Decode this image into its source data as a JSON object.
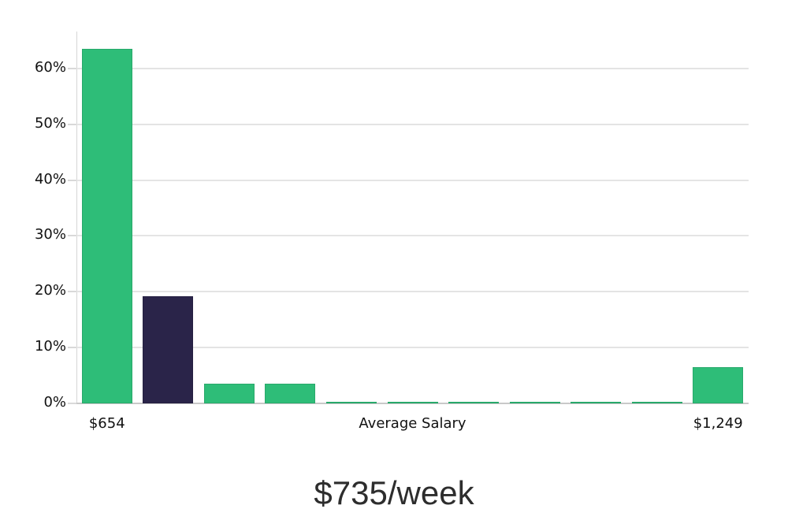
{
  "chart_data": {
    "type": "bar",
    "title": "$735/week",
    "title_position": "bottom-center",
    "values": [
      63.5,
      19.2,
      3.5,
      3.5,
      0.3,
      0.3,
      0.3,
      0.3,
      0.3,
      0.3,
      6.5
    ],
    "bar_colors": [
      "#2EBD78",
      "#2A2449",
      "#2EBD78",
      "#2EBD78",
      "#2EBD78",
      "#2EBD78",
      "#2EBD78",
      "#2EBD78",
      "#2EBD78",
      "#2EBD78",
      "#2EBD78"
    ],
    "ytick_labels": [
      "0%",
      "10%",
      "20%",
      "30%",
      "40%",
      "50%",
      "60%"
    ],
    "ytick_values": [
      0,
      10,
      20,
      30,
      40,
      50,
      60
    ],
    "ylim": [
      0,
      66.6
    ],
    "grid": true,
    "legend": null,
    "xlabel": "",
    "ylabel": "",
    "x_tick_labels": [
      {
        "text": "$654",
        "bar_index": 0
      },
      {
        "text": "Average Salary",
        "position": "axis-center"
      },
      {
        "text": "$1,249",
        "bar_index": 10
      }
    ],
    "colors": {
      "bar_green": "#2EBD78",
      "bar_navy": "#2A2449",
      "gridline": "#E4E4E4",
      "baseline": "#C9C9C9",
      "axis_line": "#D6D6D6",
      "tick": "#D9D9D9",
      "label": "#111111",
      "title": "#2D2D2D",
      "background": "#FFFFFF"
    }
  }
}
